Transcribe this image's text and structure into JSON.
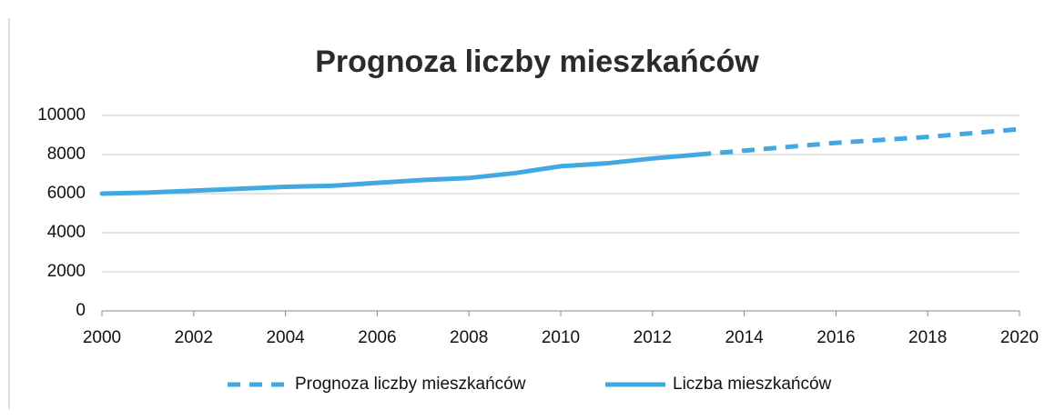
{
  "chart_data": {
    "type": "line",
    "title": "Prognoza liczby mieszkańców",
    "x": [
      2000,
      2001,
      2002,
      2003,
      2004,
      2005,
      2006,
      2007,
      2008,
      2009,
      2010,
      2011,
      2012,
      2013,
      2014,
      2015,
      2016,
      2017,
      2018,
      2019,
      2020
    ],
    "series": [
      {
        "name": "Prognoza liczby mieszkańców",
        "color": "#41a9e1",
        "linestyle": "dashed",
        "values": [
          null,
          null,
          null,
          null,
          null,
          null,
          null,
          null,
          null,
          null,
          null,
          null,
          null,
          8000,
          8200,
          8400,
          8600,
          8750,
          8900,
          9100,
          9300
        ]
      },
      {
        "name": "Liczba mieszkańców",
        "color": "#41a9e1",
        "linestyle": "solid",
        "values": [
          6000,
          6050,
          6150,
          6250,
          6350,
          6400,
          6550,
          6700,
          6800,
          7050,
          7400,
          7550,
          7800,
          8000,
          null,
          null,
          null,
          null,
          null,
          null,
          null
        ]
      }
    ],
    "xlim": [
      2000,
      2020
    ],
    "xticks": [
      2000,
      2002,
      2004,
      2006,
      2008,
      2010,
      2012,
      2014,
      2016,
      2018,
      2020
    ],
    "ylim": [
      0,
      10000
    ],
    "yticks": [
      0,
      2000,
      4000,
      6000,
      8000,
      10000
    ],
    "grid": true,
    "legend": "bottom"
  }
}
